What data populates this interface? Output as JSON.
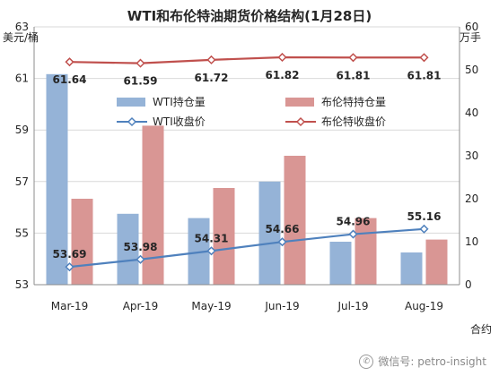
{
  "chart_data": {
    "type": "bar",
    "title": "WTI和布伦特油期货价格结构(1月28日)",
    "ylabel_left": "美元/桶",
    "ylabel_right": "万手",
    "xlabel": "合约",
    "categories": [
      "Mar-19",
      "Apr-19",
      "May-19",
      "Jun-19",
      "Jul-19",
      "Aug-19"
    ],
    "y_left_lim": [
      53,
      63
    ],
    "y_left_ticks": [
      "53",
      "55",
      "57",
      "59",
      "61",
      "63"
    ],
    "y_right_lim": [
      0,
      60
    ],
    "y_right_ticks": [
      "0",
      "10",
      "20",
      "30",
      "40",
      "50",
      "60"
    ],
    "series": [
      {
        "name": "WTI持仓量",
        "type": "bar",
        "axis": "right",
        "color": "#95b3d7",
        "values": [
          49,
          16.5,
          15.5,
          24,
          10,
          7.5
        ]
      },
      {
        "name": "布伦特持仓量",
        "type": "bar",
        "axis": "right",
        "color": "#d99694",
        "values": [
          20,
          37,
          22.5,
          30,
          15.5,
          10.5
        ]
      },
      {
        "name": "WTI收盘价",
        "type": "line",
        "axis": "left",
        "color": "#4f81bd",
        "values": [
          53.69,
          53.98,
          54.31,
          54.66,
          54.96,
          55.16
        ],
        "labels": [
          "53.69",
          "53.98",
          "54.31",
          "54.66",
          "54.96",
          "55.16"
        ]
      },
      {
        "name": "布伦特收盘价",
        "type": "line",
        "axis": "left",
        "color": "#c0504d",
        "values": [
          61.64,
          61.59,
          61.72,
          61.82,
          61.81,
          61.81
        ],
        "labels": [
          "61.64",
          "61.59",
          "61.72",
          "61.82",
          "61.81",
          "61.81"
        ]
      }
    ],
    "grid": true,
    "legend": "top-center, inside plot"
  },
  "watermark": {
    "icon": "wechat-icon",
    "text": "微信号: petro-insight"
  }
}
